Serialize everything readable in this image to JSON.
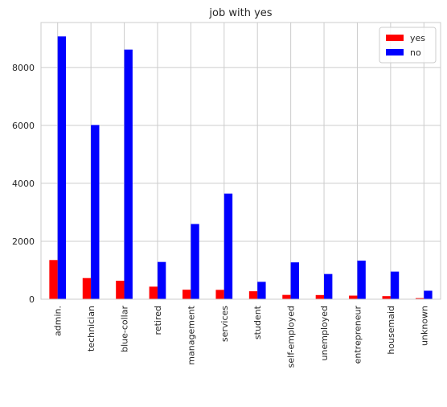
{
  "chart_data": {
    "type": "bar",
    "title": "job with yes",
    "categories": [
      "admin.",
      "technician",
      "blue-collar",
      "retired",
      "management",
      "services",
      "student",
      "self-employed",
      "unemployed",
      "entrepreneur",
      "housemaid",
      "unknown"
    ],
    "series": [
      {
        "name": "yes",
        "color": "#ff0000",
        "values": [
          1352,
          730,
          638,
          434,
          328,
          323,
          275,
          149,
          144,
          124,
          106,
          37
        ]
      },
      {
        "name": "no",
        "color": "#0000ff",
        "values": [
          9070,
          6013,
          8616,
          1286,
          2596,
          3646,
          600,
          1272,
          870,
          1332,
          954,
          293
        ]
      }
    ],
    "xlabel": "",
    "ylabel": "",
    "ylim": [
      0,
      9550
    ],
    "yticks": [
      0,
      2000,
      4000,
      6000,
      8000
    ],
    "grid": true,
    "legend_position": "top-right"
  }
}
